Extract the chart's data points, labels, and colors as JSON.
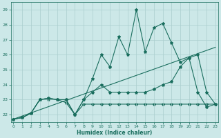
{
  "xlabel": "Humidex (Indice chaleur)",
  "bg_color": "#cce8e8",
  "grid_color": "#aacece",
  "line_color": "#1a6e5e",
  "xlim_min": -0.3,
  "xlim_max": 23.3,
  "ylim_min": 21.5,
  "ylim_max": 29.5,
  "yticks": [
    22,
    23,
    24,
    25,
    26,
    27,
    28,
    29
  ],
  "xticks": [
    0,
    1,
    2,
    3,
    4,
    5,
    6,
    7,
    8,
    9,
    10,
    11,
    12,
    13,
    14,
    15,
    16,
    17,
    18,
    19,
    20,
    21,
    22,
    23
  ],
  "line1_x": [
    0,
    1,
    2,
    3,
    4,
    5,
    6,
    7,
    8,
    9,
    10,
    11,
    12,
    13,
    14,
    15,
    16,
    17,
    18,
    19,
    20,
    21,
    22,
    23
  ],
  "line1_y": [
    21.7,
    21.8,
    22.1,
    23.0,
    23.1,
    23.0,
    23.0,
    22.0,
    23.0,
    24.4,
    26.0,
    25.2,
    27.2,
    26.0,
    29.0,
    26.2,
    27.8,
    28.1,
    26.8,
    25.5,
    25.8,
    23.5,
    22.5,
    22.7
  ],
  "line2_x": [
    0,
    1,
    2,
    3,
    4,
    5,
    6,
    7,
    8,
    9,
    10,
    11,
    12,
    13,
    14,
    15,
    16,
    17,
    18,
    19,
    20,
    21,
    22,
    23
  ],
  "line2_y": [
    21.7,
    21.8,
    22.1,
    23.0,
    23.1,
    23.0,
    23.0,
    22.0,
    23.0,
    23.5,
    24.0,
    23.5,
    23.5,
    23.5,
    23.5,
    23.5,
    23.7,
    24.0,
    24.2,
    25.2,
    25.8,
    26.0,
    23.5,
    22.7
  ],
  "line3_x": [
    0,
    23
  ],
  "line3_y": [
    21.7,
    26.5
  ],
  "line4_x": [
    0,
    1,
    2,
    3,
    4,
    5,
    6,
    7,
    8,
    9,
    10,
    11,
    12,
    13,
    14,
    15,
    16,
    17,
    18,
    19,
    20,
    21,
    22,
    23
  ],
  "line4_y": [
    21.7,
    21.8,
    22.1,
    23.0,
    23.0,
    23.0,
    22.8,
    22.0,
    22.7,
    22.7,
    22.7,
    22.7,
    22.7,
    22.7,
    22.7,
    22.7,
    22.7,
    22.7,
    22.7,
    22.7,
    22.7,
    22.7,
    22.7,
    22.7
  ]
}
